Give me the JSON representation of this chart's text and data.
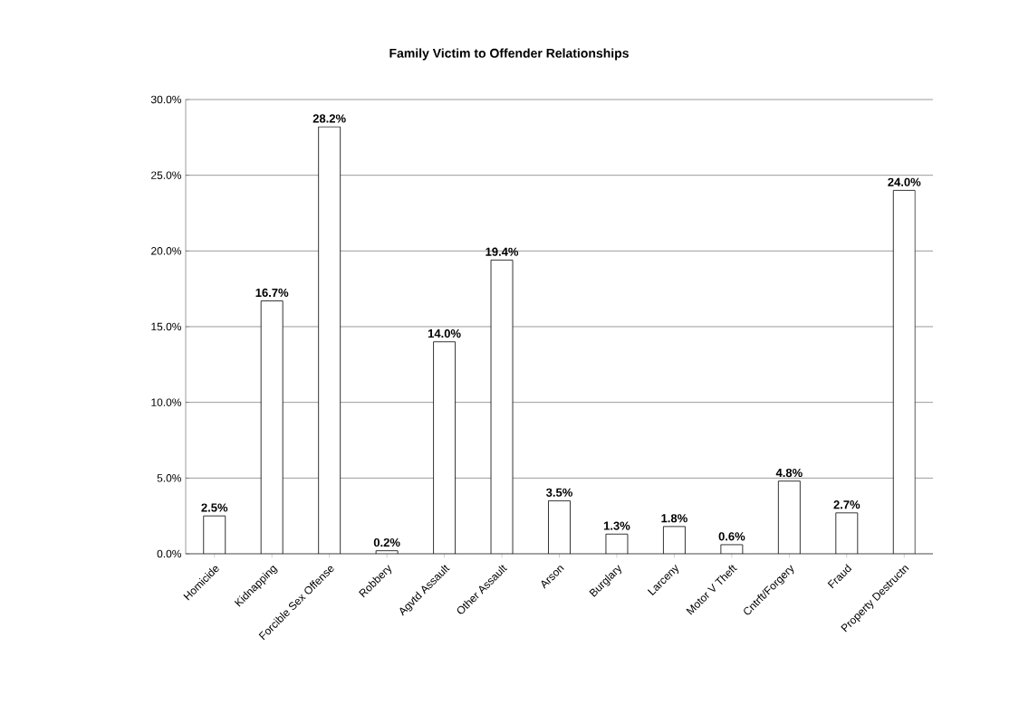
{
  "chart_data": {
    "type": "bar",
    "title": "Family Victim to Offender Relationships",
    "categories": [
      "Homicide",
      "Kidnapping",
      "Forcible Sex Offense",
      "Robbery",
      "Agvtd Assault",
      "Other  Assault",
      "Arson",
      "Burglary",
      "Larceny",
      "Motor V Theft",
      "Cntrft/Forgery",
      "Fraud",
      "Property Destructn"
    ],
    "values": [
      2.5,
      16.7,
      28.2,
      0.2,
      14.0,
      19.4,
      3.5,
      1.3,
      1.8,
      0.6,
      4.8,
      2.7,
      24.0
    ],
    "value_labels": [
      "2.5%",
      "16.7%",
      "28.2%",
      "0.2%",
      "14.0%",
      "19.4%",
      "3.5%",
      "1.3%",
      "1.8%",
      "0.6%",
      "4.8%",
      "2.7%",
      "24.0%"
    ],
    "color": "#ffffff",
    "ylim": [
      0,
      30
    ],
    "yticks": [
      {
        "value": 0,
        "label": "0.0%"
      },
      {
        "value": 5,
        "label": "5.0%"
      },
      {
        "value": 10,
        "label": "10.0%"
      },
      {
        "value": 15,
        "label": "15.0%"
      },
      {
        "value": 20,
        "label": "20.0%"
      },
      {
        "value": 25,
        "label": "25.0%"
      },
      {
        "value": 30,
        "label": "30.0%"
      }
    ],
    "grid": "y"
  }
}
